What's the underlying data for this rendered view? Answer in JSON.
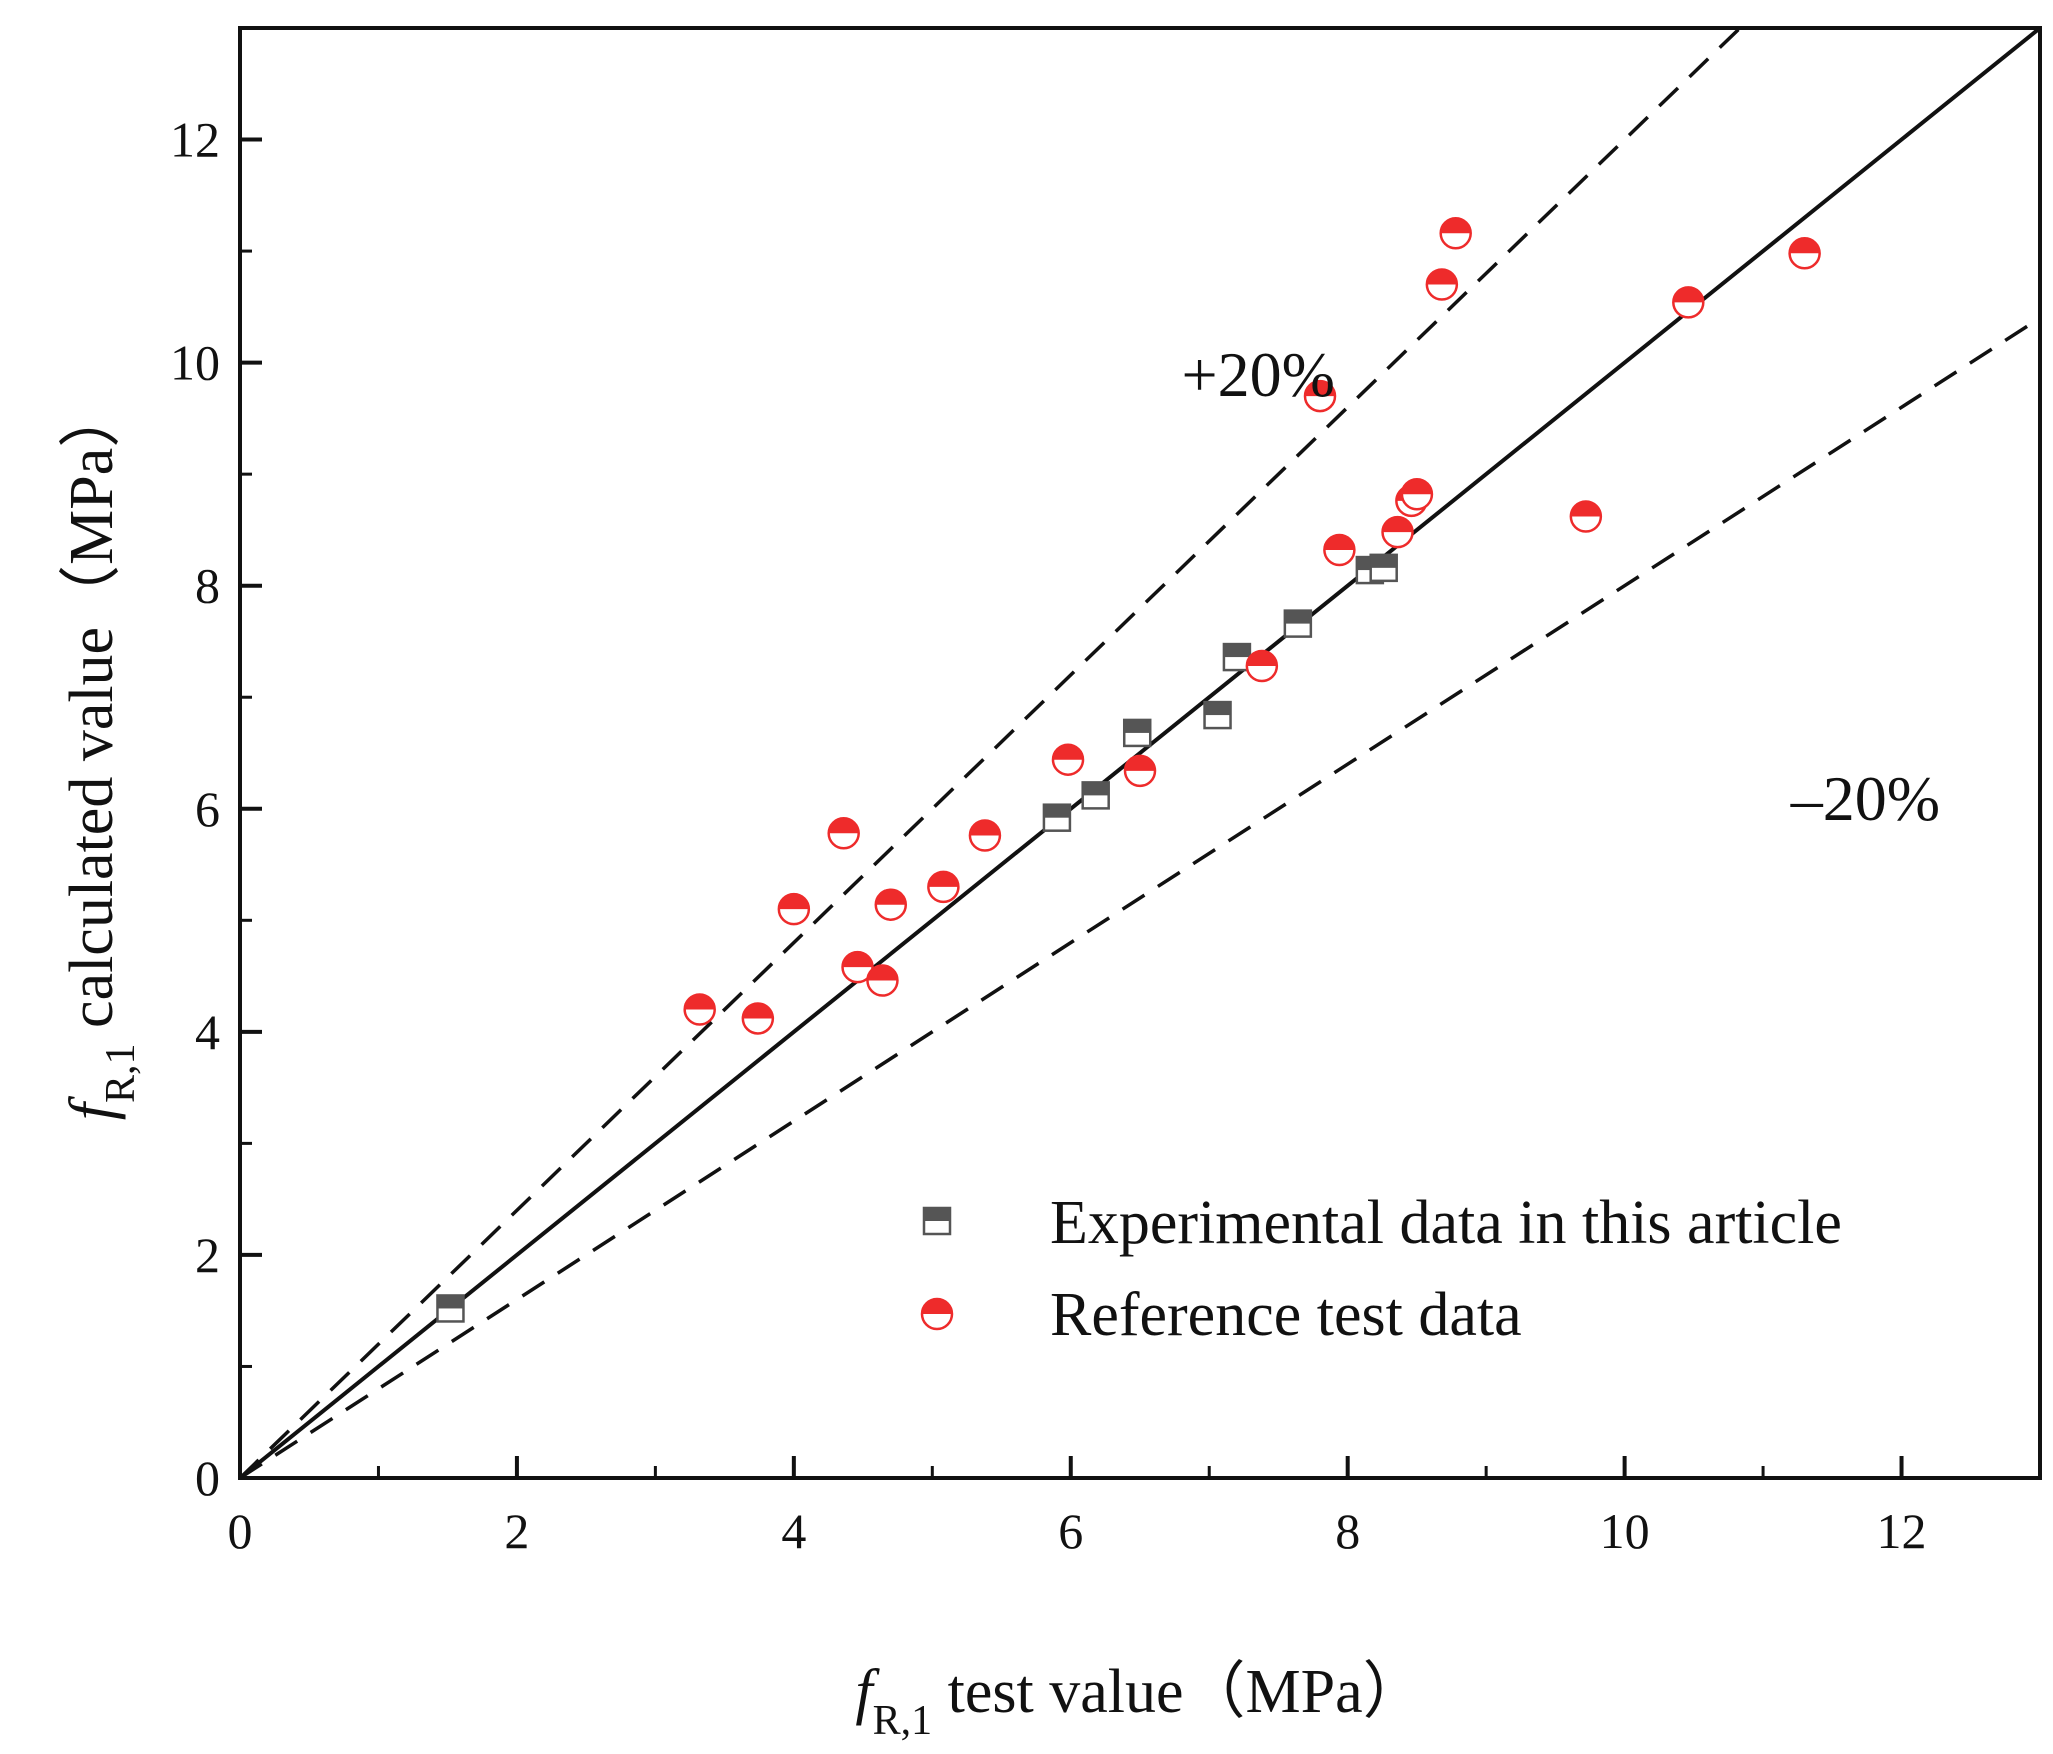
{
  "chart_data": {
    "type": "scatter",
    "title": "",
    "xlabel": {
      "symbol": "f",
      "subscript": "R,1",
      "text": " test value（MPa）"
    },
    "ylabel": {
      "symbol": "f",
      "subscript": "R,1",
      "text": " calculated value（MPa）"
    },
    "xlim": [
      0,
      13
    ],
    "ylim": [
      0,
      13
    ],
    "xticks": [
      "0",
      "2",
      "4",
      "6",
      "8",
      "10",
      "12"
    ],
    "yticks": [
      "0",
      "2",
      "4",
      "6",
      "8",
      "10",
      "12"
    ],
    "xtick_values": [
      0,
      2,
      4,
      6,
      8,
      10,
      12
    ],
    "ytick_values": [
      0,
      2,
      4,
      6,
      8,
      10,
      12
    ],
    "minor_ticks": [
      1,
      3,
      5,
      7,
      9,
      11
    ],
    "grid": false,
    "legend_position": "bottom-right",
    "series": [
      {
        "name": "Experimental data in this article",
        "marker": "half-filled-square",
        "color": "#555555",
        "points": [
          {
            "x": 1.52,
            "y": 1.52
          },
          {
            "x": 5.9,
            "y": 5.92
          },
          {
            "x": 6.18,
            "y": 6.12
          },
          {
            "x": 6.48,
            "y": 6.68
          },
          {
            "x": 7.06,
            "y": 6.84
          },
          {
            "x": 7.2,
            "y": 7.36
          },
          {
            "x": 7.64,
            "y": 7.66
          },
          {
            "x": 8.16,
            "y": 8.14
          },
          {
            "x": 8.26,
            "y": 8.16
          }
        ]
      },
      {
        "name": "Reference test data",
        "marker": "half-filled-circle",
        "color": "#ee2b2b",
        "points": [
          {
            "x": 3.32,
            "y": 4.2
          },
          {
            "x": 3.74,
            "y": 4.12
          },
          {
            "x": 4.0,
            "y": 5.1
          },
          {
            "x": 4.36,
            "y": 5.78
          },
          {
            "x": 4.46,
            "y": 4.58
          },
          {
            "x": 4.64,
            "y": 4.46
          },
          {
            "x": 4.7,
            "y": 5.14
          },
          {
            "x": 5.08,
            "y": 5.3
          },
          {
            "x": 5.38,
            "y": 5.76
          },
          {
            "x": 5.98,
            "y": 6.44
          },
          {
            "x": 6.5,
            "y": 6.34
          },
          {
            "x": 7.38,
            "y": 7.28
          },
          {
            "x": 7.8,
            "y": 9.7
          },
          {
            "x": 7.94,
            "y": 8.32
          },
          {
            "x": 8.36,
            "y": 8.48
          },
          {
            "x": 8.46,
            "y": 8.76
          },
          {
            "x": 8.5,
            "y": 8.82
          },
          {
            "x": 8.68,
            "y": 10.7
          },
          {
            "x": 8.78,
            "y": 11.16
          },
          {
            "x": 9.72,
            "y": 8.62
          },
          {
            "x": 10.46,
            "y": 10.54
          },
          {
            "x": 11.3,
            "y": 10.98
          }
        ]
      }
    ],
    "reference_lines": [
      {
        "name": "1:1 line",
        "slope": 1.0,
        "style": "solid"
      },
      {
        "name": "+20% bound",
        "slope": 1.2,
        "style": "dashed"
      },
      {
        "name": "-20% bound",
        "slope": 0.8,
        "style": "dashed"
      }
    ],
    "annotations": [
      {
        "text": "+20%",
        "x": 6.8,
        "y": 9.7
      },
      {
        "text": "–20%",
        "x": 11.2,
        "y": 5.9
      }
    ]
  }
}
